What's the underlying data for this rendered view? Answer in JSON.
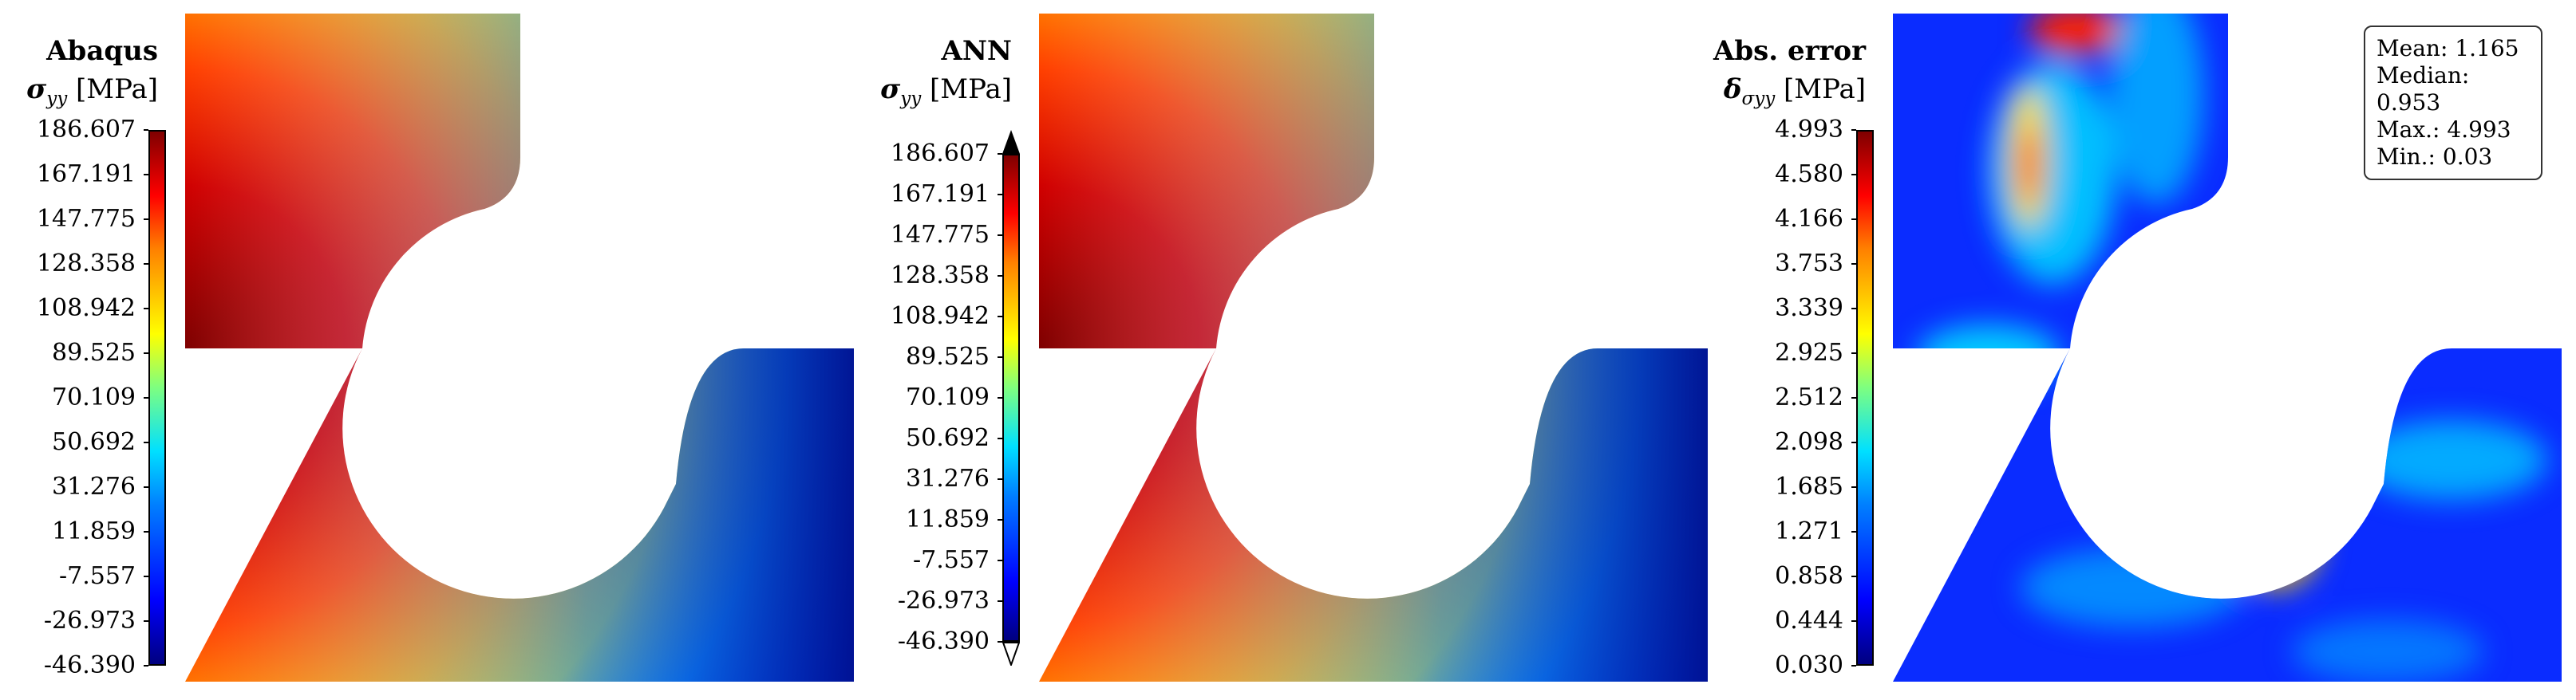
{
  "panels": [
    {
      "title": "Abaqus",
      "symbol": "σ",
      "subscript": "yy",
      "unit": "[MPa]",
      "ticks": [
        "186.607",
        "167.191",
        "147.775",
        "128.358",
        "108.942",
        "89.525",
        "70.109",
        "50.692",
        "31.276",
        "11.859",
        "-7.557",
        "-26.973",
        "-46.390"
      ]
    },
    {
      "title": "ANN",
      "symbol": "σ",
      "subscript": "yy",
      "unit": "[MPa]",
      "ticks": [
        "186.607",
        "167.191",
        "147.775",
        "128.358",
        "108.942",
        "89.525",
        "70.109",
        "50.692",
        "31.276",
        "11.859",
        "-7.557",
        "-26.973",
        "-46.390"
      ]
    },
    {
      "title": "Abs. error",
      "symbol": "δ",
      "subscript": "σyy",
      "unit": "[MPa]",
      "ticks": [
        "4.993",
        "4.580",
        "4.166",
        "3.753",
        "3.339",
        "2.925",
        "2.512",
        "2.098",
        "1.685",
        "1.271",
        "0.858",
        "0.444",
        "0.030"
      ]
    }
  ],
  "stats": {
    "mean": "Mean: 1.165",
    "median": "Median: 0.953",
    "max": "Max.: 4.993",
    "min": "Min.: 0.03"
  },
  "chart_data": [
    {
      "type": "heatmap",
      "title": "Abaqus",
      "colormap": "jet",
      "zlim": [
        -46.39,
        186.607
      ]
    },
    {
      "type": "heatmap",
      "title": "ANN",
      "colormap": "jet",
      "zlim": [
        -46.39,
        186.607
      ],
      "colorbar_extend": "both"
    },
    {
      "type": "heatmap",
      "title": "Abs. error",
      "colormap": "jet",
      "zlim": [
        0.03,
        4.993
      ],
      "stats": {
        "mean": 1.165,
        "median": 0.953,
        "max": 4.993,
        "min": 0.03
      }
    }
  ]
}
